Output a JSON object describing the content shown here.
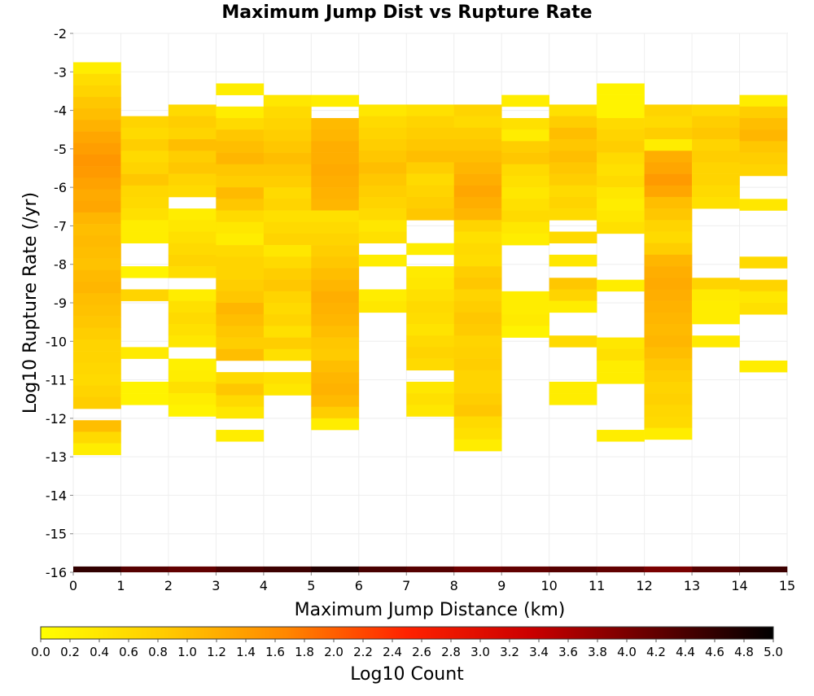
{
  "chart_data": {
    "type": "heatmap",
    "title": "Maximum Jump Dist vs Rupture Rate",
    "xlabel": "Maximum Jump Distance (km)",
    "ylabel": "Log10 Rupture Rate (/yr)",
    "xlim": [
      0,
      15
    ],
    "ylim": [
      -16,
      -2
    ],
    "x_ticks": [
      "0",
      "1",
      "2",
      "3",
      "4",
      "5",
      "6",
      "7",
      "8",
      "9",
      "10",
      "11",
      "12",
      "13",
      "14",
      "15"
    ],
    "y_ticks": [
      "-2",
      "-3",
      "-4",
      "-5",
      "-6",
      "-7",
      "-8",
      "-9",
      "-10",
      "-11",
      "-12",
      "-13",
      "-14",
      "-15",
      "-16"
    ],
    "x_bin_width": 1,
    "y_bin_height": 0.3,
    "colorbar": {
      "label": "Log10 Count",
      "range": [
        0,
        5
      ],
      "ticks": [
        "0.0",
        "0.2",
        "0.4",
        "0.6",
        "0.8",
        "1.0",
        "1.2",
        "1.4",
        "1.6",
        "1.8",
        "2.0",
        "2.2",
        "2.4",
        "2.6",
        "2.8",
        "3.0",
        "3.2",
        "3.4",
        "3.6",
        "3.8",
        "4.0",
        "4.2",
        "4.4",
        "4.6",
        "4.8",
        "5.0"
      ],
      "colors": [
        "#ffff00",
        "#ffcc00",
        "#ff8800",
        "#ff2200",
        "#cc0000",
        "#660000",
        "#000000"
      ]
    },
    "columns": [
      {
        "x": 0,
        "y_start": -2.75,
        "values": [
          0.3,
          0.55,
          0.7,
          0.9,
          1.0,
          1.15,
          1.3,
          1.4,
          1.5,
          1.45,
          1.35,
          1.25,
          1.3,
          1.1,
          1.0,
          1.05,
          1.0,
          0.95,
          1.05,
          1.1,
          1.0,
          0.95,
          0.9,
          0.8,
          0.7,
          0.7,
          0.65,
          0.6,
          0.7,
          0.8,
          null,
          1.0,
          0.6,
          0.3
        ]
      },
      {
        "x": 1,
        "y_start": -4.15,
        "values": [
          0.7,
          0.6,
          0.8,
          0.6,
          0.7,
          0.9,
          0.65,
          0.6,
          0.5,
          0.3,
          0.3,
          null,
          null,
          0.2,
          null,
          0.7,
          null,
          null,
          null,
          null,
          0.35,
          null,
          null,
          0.2,
          0.2
        ]
      },
      {
        "x": 2,
        "y_start": -3.85,
        "values": [
          0.6,
          0.8,
          0.7,
          1.0,
          0.8,
          0.9,
          0.7,
          0.6,
          null,
          0.3,
          0.4,
          0.5,
          0.6,
          0.7,
          0.55,
          null,
          0.3,
          0.5,
          0.6,
          0.5,
          0.4,
          null,
          0.25,
          0.3,
          0.5,
          0.3,
          0.2
        ]
      },
      {
        "x": 3,
        "y_start": -3.3,
        "values": [
          0.3,
          null,
          0.3,
          0.6,
          0.9,
          1.0,
          1.1,
          0.9,
          0.8,
          1.05,
          0.9,
          0.6,
          0.4,
          0.3,
          0.6,
          0.7,
          0.7,
          0.8,
          0.9,
          1.1,
          1.0,
          0.9,
          0.8,
          1.0,
          null,
          0.6,
          0.9,
          0.6,
          0.4,
          null,
          0.3
        ]
      },
      {
        "x": 4,
        "y_start": -3.6,
        "values": [
          0.4,
          0.6,
          0.7,
          0.8,
          0.9,
          1.0,
          0.9,
          0.8,
          0.6,
          0.7,
          0.5,
          0.6,
          0.7,
          0.4,
          0.6,
          0.8,
          0.9,
          0.7,
          0.6,
          0.7,
          0.5,
          0.8,
          0.5,
          null,
          0.5,
          0.4
        ]
      },
      {
        "x": 5,
        "y_start": -3.6,
        "values": [
          0.3,
          null,
          1.05,
          1.1,
          1.2,
          1.2,
          1.25,
          1.2,
          1.15,
          1.1,
          0.5,
          0.6,
          0.7,
          0.8,
          0.9,
          1.0,
          1.1,
          1.2,
          1.15,
          1.1,
          1.0,
          0.9,
          0.85,
          1.0,
          1.1,
          1.15,
          1.05,
          0.8,
          0.3
        ]
      },
      {
        "x": 6,
        "y_start": -3.85,
        "values": [
          0.4,
          0.6,
          0.7,
          0.8,
          0.9,
          1.0,
          0.9,
          0.8,
          0.7,
          0.6,
          0.4,
          0.5,
          null,
          0.3,
          null,
          null,
          0.3,
          0.4
        ]
      },
      {
        "x": 7,
        "y_start": -3.85,
        "values": [
          0.5,
          0.7,
          0.8,
          0.9,
          1.0,
          0.8,
          0.6,
          0.7,
          0.8,
          0.9,
          null,
          null,
          0.3,
          null,
          0.35,
          0.4,
          0.5,
          0.6,
          0.55,
          0.45,
          0.6,
          0.7,
          0.6,
          null,
          0.4,
          0.5,
          0.4
        ]
      },
      {
        "x": 8,
        "y_start": -3.85,
        "values": [
          0.7,
          0.6,
          0.8,
          0.9,
          1.0,
          1.1,
          1.2,
          1.3,
          1.2,
          1.1,
          0.7,
          0.5,
          0.6,
          0.55,
          0.8,
          0.9,
          0.7,
          0.8,
          0.9,
          0.85,
          0.7,
          0.75,
          0.8,
          0.7,
          0.7,
          0.8,
          0.9,
          0.6,
          0.5,
          0.3
        ]
      },
      {
        "x": 9,
        "y_start": -3.6,
        "values": [
          0.3,
          null,
          0.5,
          0.3,
          0.8,
          0.9,
          0.6,
          0.5,
          0.4,
          0.5,
          0.6,
          0.4,
          0.3,
          null,
          null,
          null,
          null,
          0.3,
          0.3,
          0.35,
          0.2
        ]
      },
      {
        "x": 10,
        "y_start": -3.85,
        "values": [
          0.5,
          0.8,
          1.0,
          0.9,
          1.0,
          0.9,
          0.8,
          0.6,
          0.7,
          0.6,
          null,
          0.6,
          null,
          0.4,
          null,
          0.9,
          0.7,
          0.3,
          null,
          null,
          0.6,
          null,
          null,
          null,
          0.3,
          0.3
        ]
      },
      {
        "x": 11,
        "y_start": -3.3,
        "values": [
          0.2,
          0.2,
          0.2,
          0.6,
          0.7,
          0.8,
          0.6,
          0.5,
          0.6,
          0.4,
          0.3,
          0.4,
          0.5,
          null,
          null,
          null,
          null,
          0.3,
          null,
          null,
          null,
          null,
          0.4,
          0.5,
          0.3,
          0.3,
          null,
          null,
          null,
          null,
          0.3
        ]
      },
      {
        "x": 12,
        "y_start": -3.85,
        "values": [
          0.7,
          0.6,
          0.8,
          0.3,
          1.2,
          1.3,
          1.45,
          1.3,
          1.0,
          0.9,
          0.7,
          0.6,
          0.8,
          1.1,
          1.2,
          1.25,
          1.2,
          1.15,
          1.1,
          1.05,
          1.1,
          1.0,
          0.9,
          0.8,
          0.7,
          0.75,
          0.65,
          0.6,
          0.3
        ]
      },
      {
        "x": 13,
        "y_start": -3.85,
        "values": [
          0.6,
          0.8,
          0.9,
          0.7,
          0.8,
          0.7,
          0.7,
          0.6,
          0.5,
          null,
          null,
          null,
          null,
          null,
          null,
          0.7,
          0.35,
          0.3,
          0.3,
          null,
          0.35
        ]
      },
      {
        "x": 14,
        "y_start": -3.6,
        "values": [
          0.3,
          0.8,
          1.0,
          1.1,
          0.9,
          0.8,
          0.7,
          null,
          null,
          0.4,
          null,
          null,
          null,
          null,
          0.6,
          null,
          0.7,
          0.4,
          0.5,
          null,
          null,
          null,
          null,
          0.3
        ]
      }
    ],
    "bottom_strip": {
      "y": -16,
      "values": [
        4.6,
        4.3,
        4.2,
        4.4,
        4.5,
        4.7,
        4.4,
        4.3,
        4.1,
        4.2,
        4.3,
        4.2,
        4.0,
        4.3,
        4.5
      ]
    }
  }
}
